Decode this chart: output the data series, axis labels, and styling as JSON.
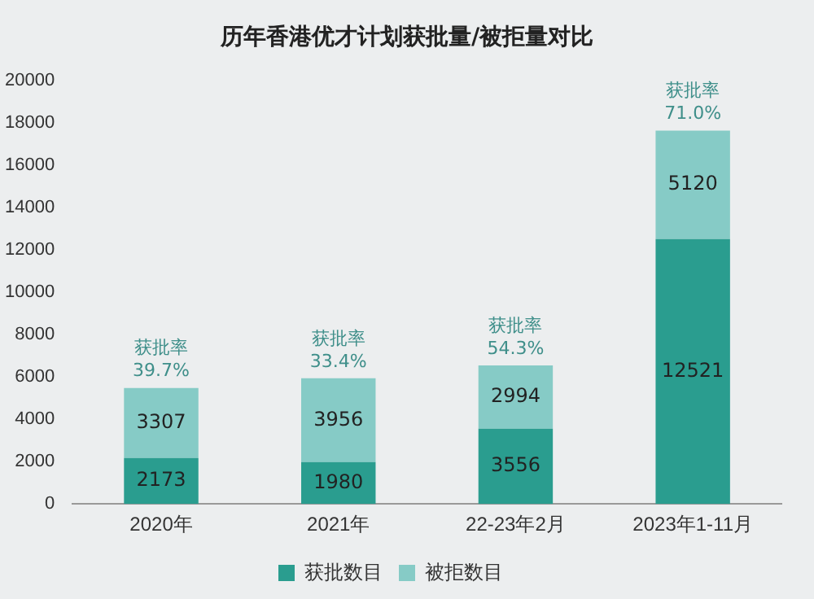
{
  "chart_data": {
    "type": "bar",
    "title": "历年香港优才计划获批量/被拒量对比",
    "categories": [
      "2020年",
      "2021年",
      "22-23年2月",
      "2023年1-11月"
    ],
    "stacked": true,
    "series": [
      {
        "name": "获批数目",
        "color": "#2a9d8f",
        "values": [
          2173,
          1980,
          3556,
          12521
        ]
      },
      {
        "name": "被拒数目",
        "color": "#86cbc6",
        "values": [
          3307,
          3956,
          2994,
          5120
        ]
      }
    ],
    "ylim": [
      0,
      20000
    ],
    "yticks": [
      0,
      2000,
      4000,
      6000,
      8000,
      10000,
      12000,
      14000,
      16000,
      18000,
      20000
    ],
    "grid": false,
    "legend": "bottom",
    "data_labels": true,
    "annotations": [
      {
        "text": "获批率 39.7%",
        "x": "2020年",
        "y": 5480
      },
      {
        "text": "获批率 33.4%",
        "x": "2021年",
        "y": 5936
      },
      {
        "text": "获批率 54.3%",
        "x": "22-23年2月",
        "y": 6550
      },
      {
        "text": "获批率 71.0%",
        "x": "2023年1-11月",
        "y": 17641
      }
    ]
  }
}
